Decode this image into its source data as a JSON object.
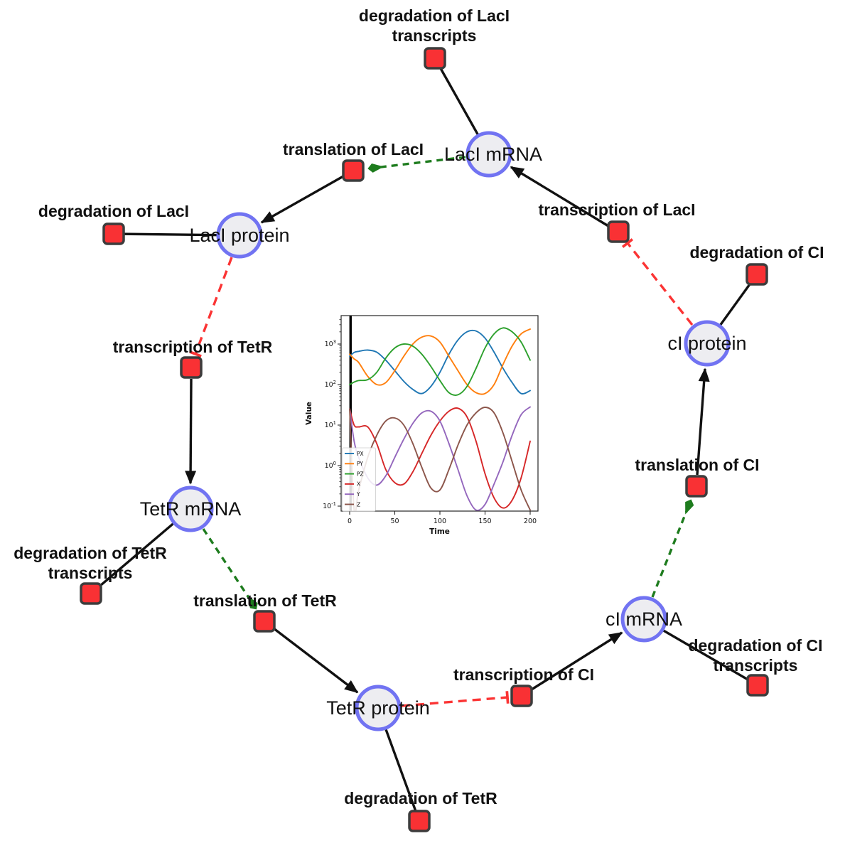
{
  "nodes": {
    "laci_mrna": {
      "label": "LacI mRNA"
    },
    "laci_protein": {
      "label": "LacI protein"
    },
    "tetr_mrna": {
      "label": "TetR mRNA"
    },
    "tetr_protein": {
      "label": "TetR protein"
    },
    "ci_mrna": {
      "label": "cI mRNA"
    },
    "ci_protein": {
      "label": "cI protein"
    }
  },
  "reactions": {
    "deg_laci_transcripts": {
      "line1": "degradation of LacI",
      "line2": "transcripts"
    },
    "translation_laci": {
      "label": "translation of LacI"
    },
    "deg_laci": {
      "label": "degradation of LacI"
    },
    "transcription_laci": {
      "label": "transcription of LacI"
    },
    "deg_ci": {
      "label": "degradation of CI"
    },
    "transcription_tetr": {
      "label": "transcription of TetR"
    },
    "deg_tetr_transcripts": {
      "line1": "degradation of TetR",
      "line2": "transcripts"
    },
    "translation_tetr": {
      "label": "translation of TetR"
    },
    "deg_tetr": {
      "label": "degradation of TetR"
    },
    "transcription_ci": {
      "label": "transcription of CI"
    },
    "deg_ci_transcripts": {
      "line1": "degradation of CI",
      "line2": "transcripts"
    },
    "translation_ci": {
      "label": "translation of CI"
    }
  },
  "colors": {
    "species_fill": "#ededf1",
    "species_border": "#7173f2",
    "reaction_fill": "#f93134",
    "reaction_border": "#3c3c3c",
    "plain_edge": "#111111",
    "activation_edge": "#1e7c1e",
    "inhibition_edge": "#fb3434"
  },
  "chart_data": {
    "type": "line",
    "title": "",
    "xlabel": "Time",
    "ylabel": "Value",
    "y_scale": "log",
    "x_ticks": [
      0,
      50,
      100,
      150,
      200
    ],
    "y_tick_exponents": [
      -1,
      0,
      1,
      2,
      3
    ],
    "xlim": [
      0,
      200
    ],
    "ylim": [
      0.1,
      1000
    ],
    "legend_position": "lower left",
    "vline_x": 1,
    "x": [
      0,
      5,
      10,
      20,
      30,
      40,
      50,
      60,
      70,
      80,
      90,
      100,
      110,
      120,
      130,
      140,
      150,
      160,
      170,
      180,
      190,
      200
    ],
    "series": [
      {
        "name": "PX",
        "color": "#1f77b4",
        "values": [
          500,
          620,
          660,
          710,
          630,
          400,
          220,
          120,
          76,
          60,
          90,
          200,
          560,
          1260,
          2000,
          2100,
          1400,
          630,
          250,
          112,
          60,
          71
        ]
      },
      {
        "name": "PY",
        "color": "#ff7f0e",
        "values": [
          560,
          430,
          350,
          160,
          100,
          112,
          220,
          500,
          1000,
          1480,
          1580,
          1120,
          500,
          220,
          100,
          63,
          60,
          100,
          316,
          890,
          1780,
          2340
        ]
      },
      {
        "name": "PZ",
        "color": "#2ca02c",
        "values": [
          100,
          115,
          126,
          132,
          200,
          450,
          800,
          1000,
          890,
          560,
          280,
          126,
          63,
          56,
          90,
          250,
          800,
          1780,
          2500,
          2000,
          1120,
          400
        ]
      },
      {
        "name": "X",
        "color": "#d62728",
        "values": [
          25,
          10,
          9,
          9,
          3.5,
          0.8,
          0.38,
          0.35,
          0.7,
          2,
          5.6,
          12.6,
          22,
          26,
          16,
          4,
          0.63,
          0.16,
          0.09,
          0.14,
          0.5,
          4
        ]
      },
      {
        "name": "Y",
        "color": "#9467bd",
        "values": [
          25,
          4,
          1.6,
          0.5,
          0.33,
          0.56,
          1.6,
          4.5,
          11,
          20,
          22,
          12.6,
          3.5,
          0.8,
          0.18,
          0.08,
          0.11,
          0.35,
          1.26,
          5.6,
          18,
          28
        ]
      },
      {
        "name": "Z",
        "color": "#8c564b",
        "values": [
          25,
          0.08,
          0.25,
          1.6,
          5.6,
          12.6,
          15,
          10,
          3.5,
          0.9,
          0.28,
          0.25,
          0.8,
          3.2,
          10,
          20,
          27.5,
          20,
          6.3,
          1.26,
          0.25,
          0.08
        ]
      }
    ]
  }
}
